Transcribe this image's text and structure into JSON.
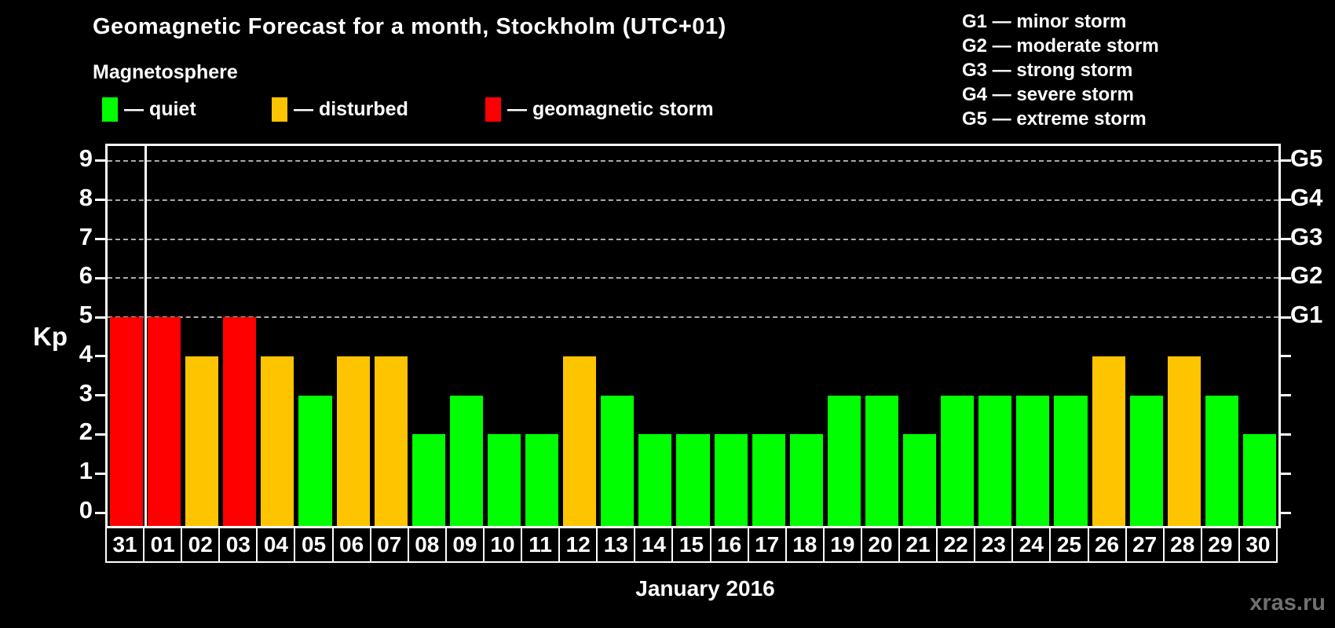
{
  "header": {
    "title": "Geomagnetic Forecast for a month, Stockholm (UTC+01)",
    "subtitle": "Magnetosphere"
  },
  "legend": {
    "items": [
      {
        "name": "quiet",
        "label": "— quiet",
        "color": "#00ff00"
      },
      {
        "name": "disturbed",
        "label": "— disturbed",
        "color": "#ffc400"
      },
      {
        "name": "storm",
        "label": "— geomagnetic storm",
        "color": "#ff0000"
      }
    ]
  },
  "g_scale_legend": {
    "items": [
      "G1 — minor storm",
      "G2 — moderate storm",
      "G3 — strong storm",
      "G4 — severe storm",
      "G5 — extreme storm"
    ]
  },
  "colors": {
    "quiet": "#00ff00",
    "disturbed": "#ffc400",
    "storm": "#ff0000",
    "background": "#000000",
    "text": "#ffffff",
    "grid": "#aaaaaa",
    "watermark": "#707070"
  },
  "chart_data": {
    "type": "bar",
    "title": "Geomagnetic Forecast for a month, Stockholm (UTC+01)",
    "subtitle": "Magnetosphere",
    "xlabel": "January 2016",
    "ylabel": "Kp",
    "ylim": [
      0,
      9
    ],
    "grid": "horizontal dashed gridlines at Kp 5,6,7,8,9",
    "legend_position": "top-left",
    "categories": [
      "31",
      "01",
      "02",
      "03",
      "04",
      "05",
      "06",
      "07",
      "08",
      "09",
      "10",
      "11",
      "12",
      "13",
      "14",
      "15",
      "16",
      "17",
      "18",
      "19",
      "20",
      "21",
      "22",
      "23",
      "24",
      "25",
      "26",
      "27",
      "28",
      "29",
      "30"
    ],
    "values": [
      5,
      5,
      4,
      5,
      4,
      3,
      4,
      4,
      2,
      3,
      2,
      2,
      4,
      3,
      2,
      2,
      2,
      2,
      2,
      3,
      3,
      2,
      3,
      3,
      3,
      3,
      4,
      3,
      4,
      3,
      2
    ],
    "statuses": [
      "storm",
      "storm",
      "disturbed",
      "storm",
      "disturbed",
      "quiet",
      "disturbed",
      "disturbed",
      "quiet",
      "quiet",
      "quiet",
      "quiet",
      "disturbed",
      "quiet",
      "quiet",
      "quiet",
      "quiet",
      "quiet",
      "quiet",
      "quiet",
      "quiet",
      "quiet",
      "quiet",
      "quiet",
      "quiet",
      "quiet",
      "disturbed",
      "quiet",
      "disturbed",
      "quiet",
      "quiet"
    ],
    "y_ticks_left": [
      "0",
      "1",
      "2",
      "3",
      "4",
      "5",
      "6",
      "7",
      "8",
      "9"
    ],
    "y_ticks_right": [
      {
        "label": "G1",
        "kp": 5
      },
      {
        "label": "G2",
        "kp": 6
      },
      {
        "label": "G3",
        "kp": 7
      },
      {
        "label": "G4",
        "kp": 8
      },
      {
        "label": "G5",
        "kp": 9
      }
    ]
  },
  "footer": {
    "xaxis_label": "January 2016",
    "watermark": "xras.ru"
  }
}
